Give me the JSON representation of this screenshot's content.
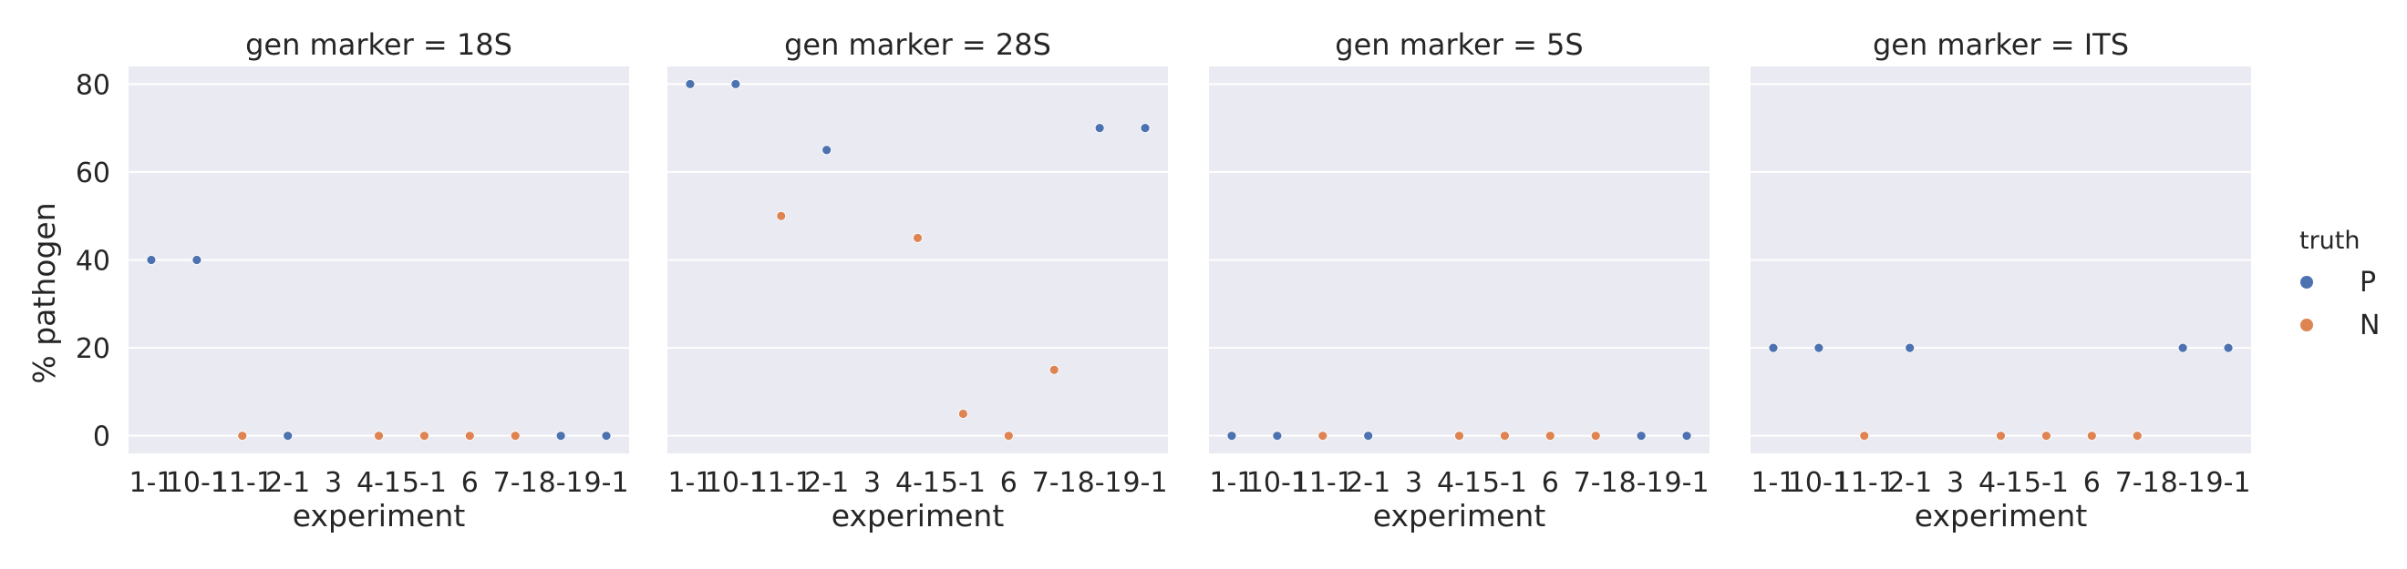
{
  "chart_data": {
    "type": "scatter",
    "layout": "facet-columns",
    "facet_variable": "gen marker",
    "xlabel": "experiment",
    "ylabel": "% pathogen",
    "categories": [
      "1-1",
      "10-1",
      "11-1",
      "2-1",
      "3",
      "4-1",
      "5-1",
      "6",
      "7-1",
      "8-1",
      "9-1"
    ],
    "ylim": [
      -4,
      84
    ],
    "yticks": [
      0,
      20,
      40,
      60,
      80
    ],
    "grid": true,
    "legend": {
      "title": "truth",
      "placement": "right",
      "entries": [
        {
          "name": "P",
          "color": "#4c72b0"
        },
        {
          "name": "N",
          "color": "#dd8452"
        }
      ]
    },
    "truth": [
      "P",
      "P",
      "N",
      "P",
      "",
      "N",
      "N",
      "N",
      "N",
      "P",
      "P"
    ],
    "panels": [
      {
        "title": "gen marker = 18S",
        "values": [
          40,
          40,
          0,
          0,
          null,
          0,
          0,
          0,
          0,
          0,
          0
        ]
      },
      {
        "title": "gen marker = 28S",
        "values": [
          80,
          80,
          50,
          65,
          null,
          45,
          5,
          0,
          15,
          70,
          70
        ]
      },
      {
        "title": "gen marker = 5S",
        "values": [
          0,
          0,
          0,
          0,
          null,
          0,
          0,
          0,
          0,
          0,
          0
        ]
      },
      {
        "title": "gen marker = ITS",
        "values": [
          20,
          20,
          0,
          20,
          null,
          0,
          0,
          0,
          0,
          20,
          20
        ]
      }
    ]
  }
}
